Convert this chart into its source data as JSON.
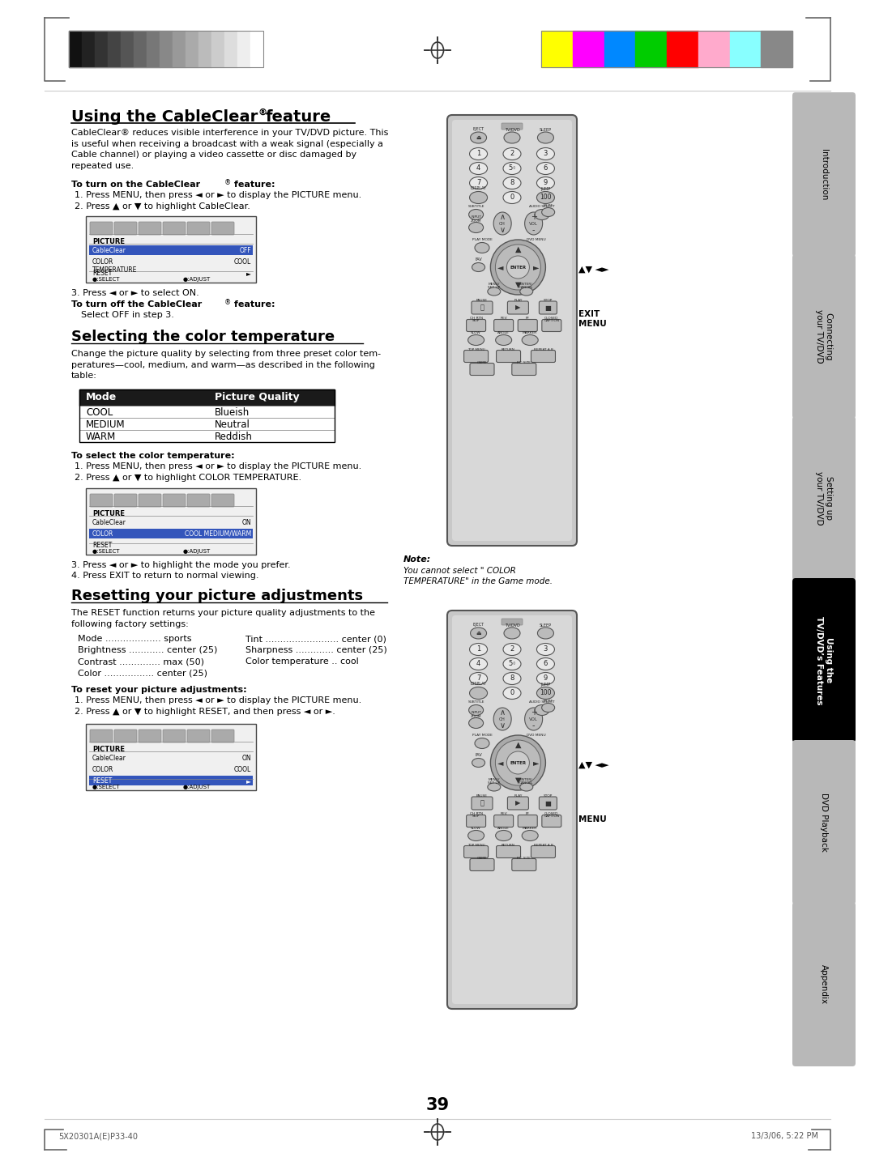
{
  "title": "Using the CableClear®feature",
  "page_number": "39",
  "background_color": "#ffffff",
  "text_color": "#000000",
  "sidebar_labels": [
    "Introduction",
    "Connecting\nyour TV/DVD",
    "Setting up\nyour TV/DVD",
    "Using the\nTV/DVD’s Features",
    "DVD Playback",
    "Appendix"
  ],
  "sidebar_active_index": 3,
  "sidebar_active_bg": "#000000",
  "sidebar_inactive_bg": "#b8b8b8",
  "sidebar_text_color_inactive": "#000000",
  "sidebar_text_color_active": "#ffffff",
  "grayscale_colors": [
    "#111111",
    "#222222",
    "#333333",
    "#444444",
    "#555555",
    "#666666",
    "#777777",
    "#888888",
    "#999999",
    "#aaaaaa",
    "#bbbbbb",
    "#cccccc",
    "#dddddd",
    "#eeeeee",
    "#ffffff"
  ],
  "color_bars": [
    "#ffff00",
    "#ff00ff",
    "#0088ff",
    "#00cc00",
    "#ff0000",
    "#ffaacc",
    "#88ffff",
    "#888888"
  ],
  "footer_left": "5X20301A(E)P33-40",
  "footer_center": "39",
  "footer_right": "13/3/06, 5:22 PM"
}
